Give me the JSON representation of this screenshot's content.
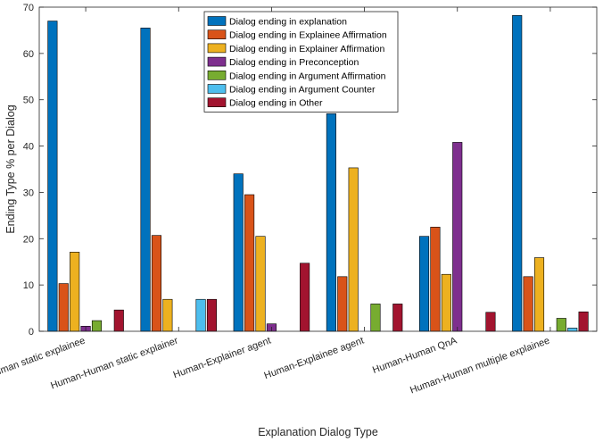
{
  "chart_data": {
    "type": "bar",
    "xlabel": "Explanation Dialog Type",
    "ylabel": "Ending Type % per Dialog",
    "ylim": [
      0,
      70
    ],
    "yticks": [
      0,
      10,
      20,
      30,
      40,
      50,
      60,
      70
    ],
    "grid": false,
    "legend_position": "top-center",
    "categories": [
      "Human static explainee",
      "Human-Human static explainer",
      "Human-Explainer agent",
      "Human-Explainee agent",
      "Human-Human QnA",
      "Human-Human multiple explainee"
    ],
    "series": [
      {
        "name": "Dialog ending in explanation",
        "color": "#0072BD",
        "values": [
          67.0,
          65.5,
          34.0,
          47.0,
          20.5,
          68.2
        ]
      },
      {
        "name": "Dialog ending in Explainee Affirmation",
        "color": "#D95319",
        "values": [
          10.3,
          20.7,
          29.5,
          11.8,
          22.5,
          11.8
        ]
      },
      {
        "name": "Dialog ending in Explainer Affirmation",
        "color": "#EDB120",
        "values": [
          17.1,
          6.9,
          20.5,
          35.3,
          12.3,
          15.9
        ]
      },
      {
        "name": "Dialog ending in Preconception",
        "color": "#7E2F8E",
        "values": [
          1.1,
          0,
          1.6,
          0,
          40.8,
          0
        ]
      },
      {
        "name": "Dialog ending in Argument Affirmation",
        "color": "#77AC30",
        "values": [
          2.3,
          0,
          0,
          5.9,
          0,
          2.8
        ]
      },
      {
        "name": "Dialog ending in Argument Counter",
        "color": "#4DBEEE",
        "values": [
          0,
          6.9,
          0,
          0,
          0,
          0.7
        ]
      },
      {
        "name": "Dialog ending in Other",
        "color": "#A2142F",
        "values": [
          4.6,
          6.9,
          14.7,
          5.9,
          4.1,
          4.2
        ]
      }
    ]
  }
}
